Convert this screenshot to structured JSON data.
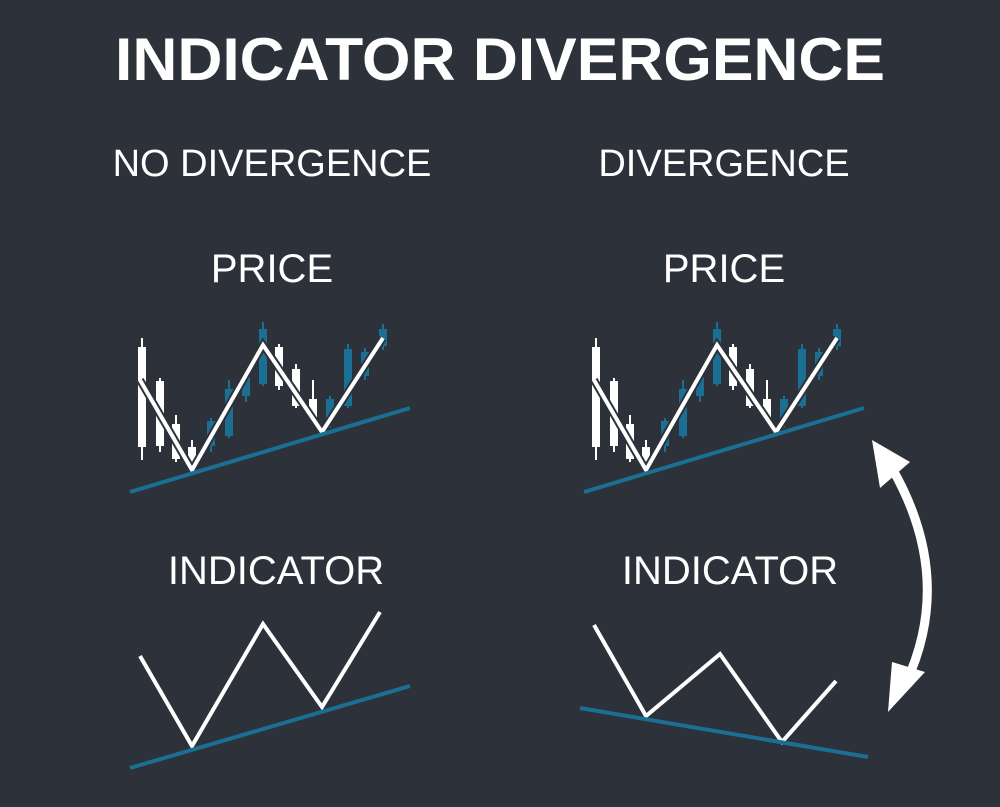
{
  "title": "INDICATOR DIVERGENCE",
  "panels": [
    {
      "heading": "NO DIVERGENCE",
      "price_label": "PRICE",
      "indicator_label": "INDICATOR"
    },
    {
      "heading": "DIVERGENCE",
      "price_label": "PRICE",
      "indicator_label": "INDICATOR"
    }
  ]
}
